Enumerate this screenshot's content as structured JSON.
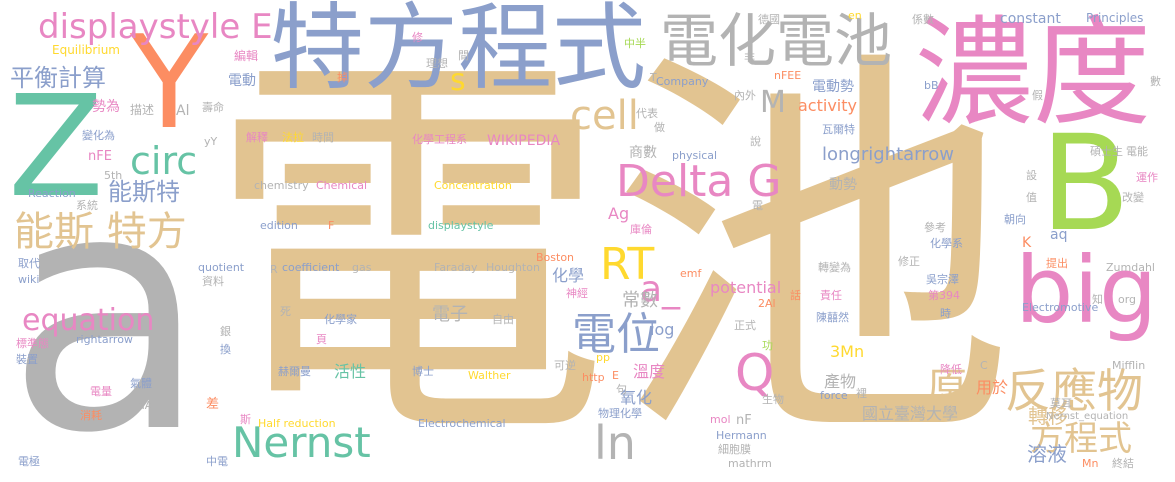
{
  "words": {
    "w001": "電池",
    "w002": "a",
    "w003": "濃度",
    "w004": "特方程式",
    "w005": "Y",
    "w006": "Z",
    "w007": "B",
    "w008": "big",
    "w009": "電化電池",
    "w010": "displaystyle E",
    "w011": "cell",
    "w012": "Delta G",
    "w013": "Nernst",
    "w014": "RT",
    "w015": "a_",
    "w016": "電位",
    "w017": "Q",
    "w018": "ln",
    "w019": "反應物",
    "w020": "原",
    "w021": "方程式",
    "w022": "能斯 特方",
    "w023": "circ",
    "w024": "equation",
    "w025": "能斯特",
    "w026": "平衡計算",
    "w027": "M",
    "w028": "s",
    "w029": "longrightarrow",
    "w030": "溶液",
    "w031": "轉移",
    "w032": "電子",
    "w033": "常數",
    "w034": "potential",
    "w035": "activity",
    "w036": "Ag",
    "w037": "氧化",
    "w038": "溫度",
    "w039": "log",
    "w040": "WIKIPEDIA",
    "w041": "3Mn",
    "w042": "化學",
    "w043": "產物",
    "w044": "國立臺灣大學",
    "w045": "用於",
    "w046": "活性",
    "w047": "constant",
    "w048": "電動勢",
    "w049": "商數",
    "w050": "動勢",
    "w051": "aq",
    "w052": "K",
    "w053": "Al",
    "w054": "Principles",
    "w055": "Equilibrium",
    "w056": "勢為",
    "w057": "描述",
    "w058": "電動",
    "w059": "編輯",
    "w060": "德國",
    "w061": "係數",
    "w062": "en",
    "w063": "中半",
    "w064": "間",
    "w065": "修",
    "w066": "理想",
    "w067": "掉",
    "w068": "非",
    "w069": "Company",
    "w070": "nFEE",
    "w071": "內外",
    "w072": "壽命",
    "w073": "變化為",
    "w074": "nFE",
    "w075": "5th",
    "w076": "Reaction",
    "w077": "系統",
    "w078": "yY",
    "w079": "解釋",
    "w080": "法拉",
    "w081": "時間",
    "w082": "化學工程系",
    "w083": "代表",
    "w084": "做",
    "w085": "說",
    "w086": "瓦爾特",
    "w087": "碩士生",
    "w088": "電能",
    "w089": "數",
    "w090": "bB",
    "w091": "physical",
    "w092": "chemistry",
    "w093": "Chemical",
    "w094": "Concentration",
    "w095": "edition",
    "w096": "F",
    "w097": "displaystyle",
    "w098": "電",
    "w099": "庫倫",
    "w100": "設",
    "w101": "值",
    "w102": "朝向",
    "w103": "運作",
    "w104": "改變",
    "w105": "參考",
    "w106": "化學系",
    "w107": "取代",
    "w108": "wiki",
    "w109": "quotient",
    "w110": "資料",
    "w111": "coefficient",
    "w112": "gas",
    "w113": "Faraday",
    "w114": "Houghton",
    "w115": "Boston",
    "w116": "神經",
    "w117": "emf",
    "w118": "轉變為",
    "w119": "修正",
    "w120": "吳宗澤",
    "w121": "第394",
    "w122": "提出",
    "w123": "Zumdahl",
    "w124": "責任",
    "w125": "話",
    "w126": "2Al",
    "w127": "正式",
    "w128": "知",
    "w129": "org",
    "w130": "陳囍然",
    "w131": "時",
    "w132": "Electromotive",
    "w133": "rightarrow",
    "w134": "死",
    "w135": "化學家",
    "w136": "自由",
    "w137": "標準態",
    "w138": "裝置",
    "w139": "銀",
    "w140": "換",
    "w141": "頁",
    "w142": "赫爾曼",
    "w143": "博士",
    "w144": "Walther",
    "w145": "可逆",
    "w146": "pp",
    "w147": "功",
    "w148": "C",
    "w149": "Mifflin",
    "w150": "http",
    "w151": "E",
    "w152": "句",
    "w153": "降低",
    "w154": "電量",
    "w155": "氣體",
    "w156": "消耗",
    "w157": "aA",
    "w158": "差",
    "w159": "斯",
    "w160": "Half reduction",
    "w161": "物理化學",
    "w162": "Electrochemical",
    "w163": "生物",
    "w164": "force",
    "w165": "裡",
    "w166": "莫耳",
    "w167": "Nernst_equation",
    "w168": "mol",
    "w169": "nF",
    "w170": "Hermann",
    "w171": "細胞膜",
    "w172": "Mn",
    "w173": "電極",
    "w174": "中電",
    "w175": "mathrm",
    "w176": "終結",
    "w177": "R",
    "w178": "T",
    "w179": "假",
    "w180": "Nernst_equation"
  },
  "colors": {
    "tan": "#e2c491",
    "pink": "#e887c3",
    "blue": "#8b9fcb",
    "gray": "#b3b3b3",
    "green": "#66c3a5",
    "lime": "#a6d954",
    "orange": "#fc8d62",
    "yellow": "#ffd92f"
  }
}
